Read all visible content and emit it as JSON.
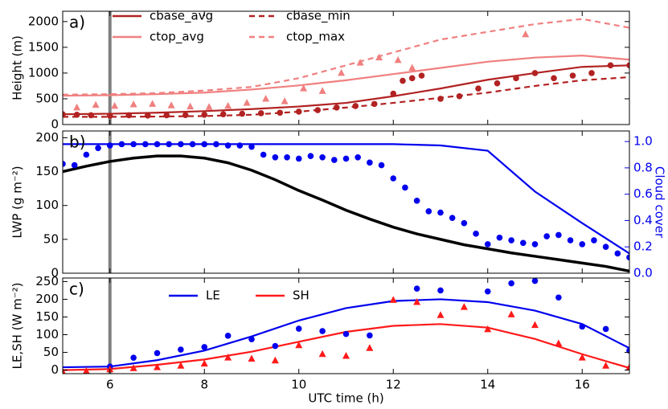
{
  "chart_data": [
    {
      "type": "line",
      "panel_label": "a)",
      "ylabel": "Height (m)",
      "xlim": [
        5,
        17
      ],
      "xticks": [
        6,
        8,
        10,
        12,
        14,
        16
      ],
      "show_xtick_labels": false,
      "ylim": [
        0,
        2200
      ],
      "yticks": [
        0,
        500,
        1000,
        1500,
        2000
      ],
      "vline": 6,
      "vline_color": "#808080",
      "legend": {
        "loc": "upper center",
        "ncol": 2
      },
      "series": [
        {
          "name": "cbase_avg",
          "color": "#b22222",
          "x": [
            5,
            6,
            7,
            8,
            9,
            10,
            11,
            12,
            13,
            14,
            15,
            16,
            17
          ],
          "values": [
            200,
            210,
            230,
            260,
            300,
            350,
            420,
            550,
            700,
            870,
            1000,
            1120,
            1150
          ]
        },
        {
          "name": "ctop_avg",
          "color": "#f08080",
          "x": [
            5,
            6,
            7,
            8,
            9,
            10,
            11,
            12,
            13,
            14,
            15,
            16,
            17
          ],
          "values": [
            560,
            570,
            590,
            620,
            680,
            760,
            860,
            980,
            1100,
            1220,
            1300,
            1340,
            1260
          ]
        },
        {
          "name": "cbase_min",
          "color": "#b22222",
          "dashed": true,
          "x": [
            5,
            6,
            7,
            8,
            9,
            10,
            11,
            12,
            13,
            14,
            15,
            16,
            17
          ],
          "values": [
            150,
            150,
            155,
            165,
            190,
            250,
            330,
            420,
            520,
            620,
            750,
            860,
            920
          ]
        },
        {
          "name": "ctop_max",
          "color": "#f08080",
          "dashed": true,
          "x": [
            5,
            6,
            7,
            8,
            9,
            10,
            11,
            12,
            13,
            14,
            15,
            16,
            17
          ],
          "values": [
            580,
            590,
            610,
            660,
            730,
            900,
            1150,
            1400,
            1650,
            1800,
            1950,
            2050,
            1880
          ]
        },
        {
          "marker": "circle",
          "color": "#b22222",
          "x": [
            5,
            5.3,
            5.6,
            6,
            6.4,
            6.8,
            7.2,
            7.6,
            8,
            8.4,
            8.8,
            9.2,
            9.6,
            10,
            10.4,
            10.8,
            11.2,
            11.6,
            12,
            12.2,
            12.4,
            12.6,
            13,
            13.4,
            13.8,
            14.2,
            14.6,
            15,
            15.4,
            15.8,
            16.2,
            16.6,
            17
          ],
          "values": [
            200,
            190,
            180,
            170,
            180,
            175,
            180,
            185,
            190,
            200,
            210,
            220,
            230,
            250,
            280,
            330,
            360,
            400,
            600,
            850,
            900,
            950,
            500,
            550,
            700,
            800,
            900,
            1000,
            900,
            950,
            1000,
            1150,
            1150
          ]
        },
        {
          "marker": "triangle",
          "color": "#f08080",
          "x": [
            5.3,
            5.7,
            6.1,
            6.5,
            6.9,
            7.3,
            7.7,
            8.1,
            8.5,
            8.9,
            9.3,
            9.7,
            10.1,
            10.5,
            10.9,
            11.3,
            11.7,
            12.1,
            12.4,
            14.8
          ],
          "values": [
            330,
            380,
            360,
            390,
            400,
            370,
            350,
            340,
            360,
            420,
            500,
            450,
            700,
            650,
            1000,
            1200,
            1300,
            1250,
            1100,
            1750
          ]
        }
      ]
    },
    {
      "type": "line",
      "panel_label": "b)",
      "ylabel": "LWP (g m⁻²)",
      "y2label": "Cloud cover",
      "y2color": "#0000ee",
      "xlim": [
        5,
        17
      ],
      "xticks": [
        6,
        8,
        10,
        12,
        14,
        16
      ],
      "show_xtick_labels": false,
      "ylim": [
        0,
        210
      ],
      "yticks": [
        0,
        50,
        100,
        150,
        200
      ],
      "y2lim": [
        0,
        1.08
      ],
      "y2ticks": [
        {
          "value": 0,
          "label": "0.0"
        },
        0.2,
        0.4,
        0.6,
        0.8,
        {
          "value": 1,
          "label": "1.0"
        }
      ],
      "vline": 6,
      "vline_color": "#808080",
      "series": [
        {
          "color": "#000000",
          "width": 3.5,
          "x": [
            5,
            5.5,
            6,
            6.5,
            7,
            7.5,
            8,
            8.5,
            9,
            9.5,
            10,
            10.5,
            11,
            11.5,
            12,
            12.5,
            13,
            13.5,
            14,
            14.5,
            15,
            15.5,
            16,
            16.5,
            17
          ],
          "values": [
            150,
            158,
            165,
            170,
            173,
            173,
            170,
            163,
            152,
            138,
            122,
            108,
            93,
            80,
            68,
            58,
            50,
            42,
            36,
            30,
            25,
            20,
            15,
            10,
            3
          ]
        },
        {
          "color": "#0000ee",
          "axis": "y2",
          "x": [
            5,
            6,
            7,
            8,
            9,
            10,
            11,
            12,
            13,
            14,
            15,
            16,
            17
          ],
          "values": [
            0.98,
            0.98,
            0.98,
            0.98,
            0.98,
            0.98,
            0.98,
            0.98,
            0.97,
            0.93,
            0.62,
            0.38,
            0.15
          ]
        },
        {
          "marker": "circle",
          "color": "#0000ee",
          "axis": "y2",
          "x": [
            5,
            5.25,
            5.5,
            5.75,
            6,
            6.25,
            6.5,
            6.75,
            7,
            7.25,
            7.5,
            7.75,
            8,
            8.25,
            8.5,
            8.75,
            9,
            9.25,
            9.5,
            9.75,
            10,
            10.25,
            10.5,
            10.75,
            11,
            11.25,
            11.5,
            11.75,
            12,
            12.25,
            12.5,
            12.75,
            13,
            13.25,
            13.5,
            13.75,
            14,
            14.25,
            14.5,
            14.75,
            15,
            15.25,
            15.5,
            15.75,
            16,
            16.25,
            16.5,
            16.75,
            17
          ],
          "values": [
            0.83,
            0.82,
            0.9,
            0.95,
            0.97,
            0.98,
            0.98,
            0.98,
            0.98,
            0.98,
            0.98,
            0.98,
            0.98,
            0.98,
            0.97,
            0.97,
            0.96,
            0.9,
            0.88,
            0.88,
            0.87,
            0.89,
            0.88,
            0.86,
            0.87,
            0.88,
            0.84,
            0.82,
            0.72,
            0.65,
            0.55,
            0.47,
            0.46,
            0.42,
            0.38,
            0.3,
            0.22,
            0.27,
            0.25,
            0.23,
            0.22,
            0.28,
            0.29,
            0.25,
            0.22,
            0.25,
            0.2,
            0.15,
            0.12
          ]
        }
      ]
    },
    {
      "type": "line",
      "panel_label": "c)",
      "ylabel": "LE,SH (W m⁻²)",
      "xlabel": "UTC time (h)",
      "xlim": [
        5,
        17
      ],
      "xticks": [
        6,
        8,
        10,
        12,
        14,
        16
      ],
      "ylim": [
        -10,
        260
      ],
      "yticks": [
        0,
        50,
        100,
        150,
        200,
        250
      ],
      "vline": 6,
      "vline_color": "#808080",
      "legend": {
        "loc": "upper center",
        "ncol": 2
      },
      "series": [
        {
          "name": "LE",
          "color": "#0000ee",
          "x": [
            5,
            6,
            7,
            8,
            9,
            10,
            11,
            12,
            13,
            14,
            15,
            16,
            17
          ],
          "values": [
            8,
            10,
            28,
            55,
            95,
            140,
            175,
            195,
            200,
            192,
            168,
            130,
            62
          ]
        },
        {
          "name": "SH",
          "color": "#ff1a1a",
          "x": [
            5,
            6,
            7,
            8,
            9,
            10,
            11,
            12,
            13,
            14,
            15,
            16,
            17
          ],
          "values": [
            0,
            3,
            15,
            30,
            52,
            80,
            108,
            125,
            130,
            120,
            88,
            45,
            6
          ]
        },
        {
          "marker": "circle",
          "color": "#0000ee",
          "x": [
            6,
            6.5,
            7,
            7.5,
            8,
            8.5,
            9,
            9.5,
            10,
            10.5,
            11,
            11.5,
            12.5,
            13,
            14,
            14.5,
            15,
            15.5,
            16,
            16.5,
            17
          ],
          "values": [
            10,
            35,
            48,
            58,
            65,
            97,
            87,
            68,
            117,
            110,
            102,
            98,
            230,
            225,
            222,
            245,
            252,
            205,
            123,
            116,
            55
          ]
        },
        {
          "marker": "triangle",
          "color": "#ff1a1a",
          "x": [
            5,
            5.5,
            6,
            6.5,
            7,
            7.5,
            8,
            8.5,
            9,
            9.5,
            10,
            10.5,
            11,
            11.5,
            12,
            12.5,
            13,
            13.5,
            14,
            14.5,
            15,
            15.5,
            16,
            16.5,
            17
          ],
          "values": [
            -5,
            -3,
            2,
            5,
            8,
            12,
            18,
            35,
            32,
            27,
            70,
            45,
            40,
            62,
            198,
            192,
            155,
            178,
            115,
            157,
            127,
            75,
            35,
            12,
            8
          ]
        }
      ]
    }
  ]
}
